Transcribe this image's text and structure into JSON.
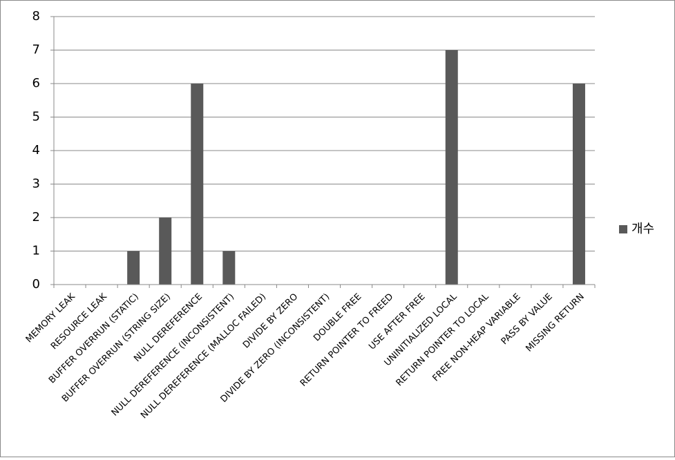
{
  "chart_data": {
    "type": "bar",
    "categories": [
      "MEMORY LEAK",
      "RESOURCE LEAK",
      "BUFFER OVERRUN (STATIC)",
      "BUFFER OVERRUN (STRING SIZE)",
      "NULL DEREFERENCE",
      "NULL DEREFERENCE (INCONSISTENT)",
      "NULL DEREFERENCE (MALLOC FAILED)",
      "DIVIDE BY ZERO",
      "DIVIDE BY ZERO (INCONSISTENT)",
      "DOUBLE FREE",
      "RETURN POINTER TO FREED",
      "USE AFTER FREE",
      "UNINITIALIZED LOCAL",
      "RETURN POINTER TO LOCAL",
      "FREE NON-HEAP VARIABLE",
      "PASS BY VALUE",
      "MISSING RETURN"
    ],
    "series": [
      {
        "name": "개수",
        "color": "#595959",
        "values": [
          0,
          0,
          1,
          2,
          6,
          1,
          0,
          0,
          0,
          0,
          0,
          0,
          7,
          0,
          0,
          0,
          6
        ]
      }
    ],
    "ylim": [
      0,
      8
    ],
    "yticks": [
      0,
      1,
      2,
      3,
      4,
      5,
      6,
      7,
      8
    ],
    "grid": true,
    "legend": "right"
  }
}
